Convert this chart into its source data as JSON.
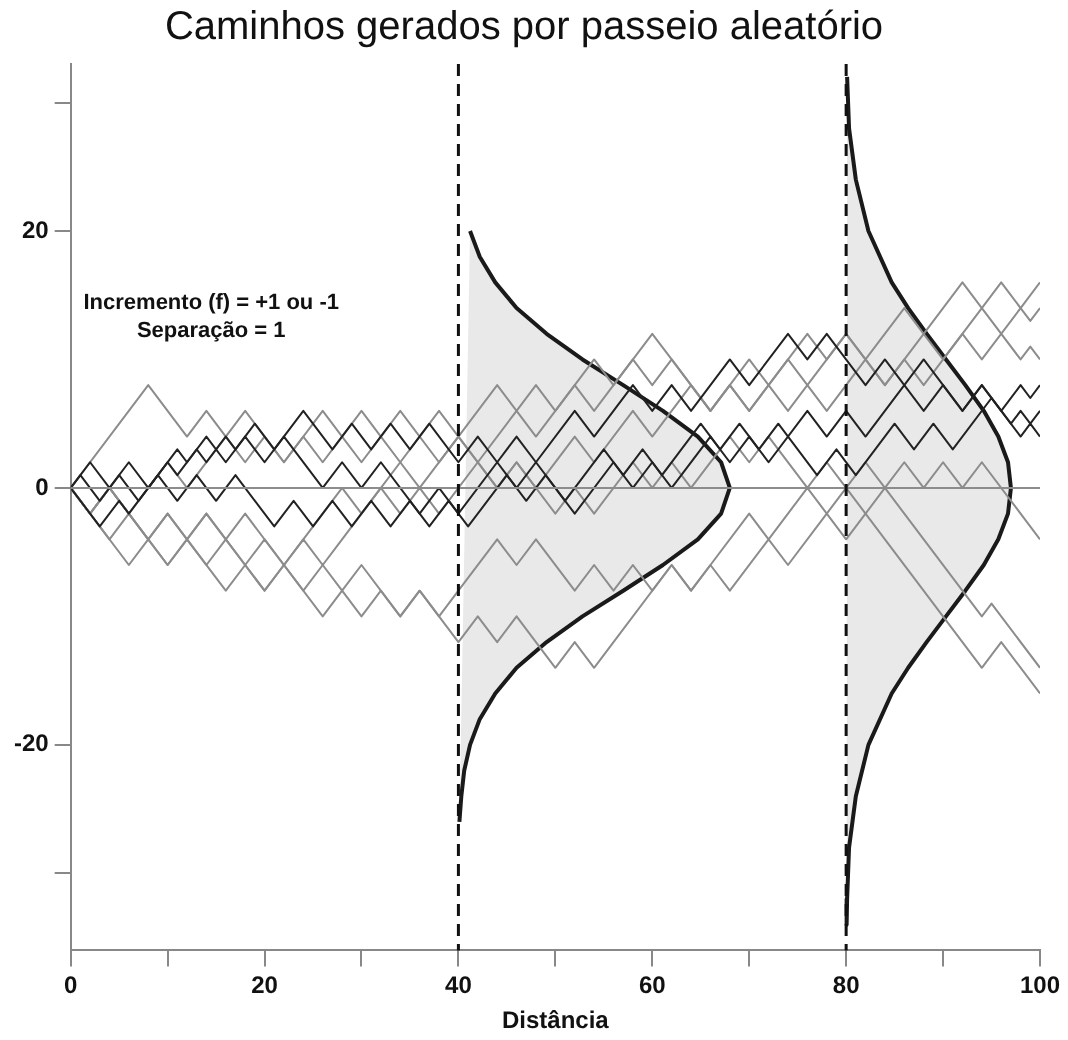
{
  "chart_data": {
    "type": "line",
    "title": "Caminhos gerados por passeio aleatório",
    "xlabel": "Distância",
    "annotations": [
      "Incremento (f) = +1 ou -1",
      "Separação = 1"
    ],
    "xlim": [
      0,
      100
    ],
    "ylim": [
      -36,
      33
    ],
    "xticks": [
      0,
      {
        "value": 10,
        "label": null
      },
      20,
      {
        "value": 30,
        "label": null
      },
      40,
      {
        "value": 50,
        "label": null
      },
      60,
      {
        "value": 70,
        "label": null
      },
      80,
      {
        "value": 90,
        "label": null
      },
      100
    ],
    "yticks": [
      {
        "value": -30,
        "label": null
      },
      -20,
      0,
      20,
      {
        "value": 30,
        "label": null
      }
    ],
    "grid": false,
    "legend": false,
    "marker": "none",
    "line_style": "solid",
    "ref_lines": [
      {
        "axis": "y",
        "value": 0,
        "color": "#8c8c8c",
        "line_style": "solid"
      },
      {
        "axis": "x",
        "value": 40,
        "color": "#111111",
        "line_style": "dashed"
      },
      {
        "axis": "x",
        "value": 80,
        "color": "#111111",
        "line_style": "dashed"
      }
    ],
    "series": [
      {
        "type": "area",
        "color": "#1a1a1a",
        "x": [
          41.2,
          42.2,
          43.8,
          46.0,
          49.1,
          52.8,
          57.0,
          61.1,
          64.7,
          67.1,
          68,
          67.1,
          64.7,
          61.1,
          57.0,
          52.8,
          49.1,
          46.0,
          43.8,
          42.2,
          41.2,
          40.6,
          40.3,
          40.1
        ],
        "values": [
          20,
          18,
          16,
          14,
          12,
          10,
          8,
          6,
          4,
          2,
          0,
          -2,
          -4,
          -6,
          -8,
          -10,
          -12,
          -14,
          -16,
          -18,
          -20,
          -22,
          -24,
          -26
        ]
      },
      {
        "type": "area",
        "color": "#1a1a1a",
        "x": [
          80.1,
          80.3,
          81.0,
          82.3,
          84.7,
          86.4,
          88.3,
          90.3,
          92.3,
          94.2,
          95.7,
          96.7,
          97,
          96.7,
          95.7,
          94.2,
          92.3,
          90.3,
          88.3,
          86.4,
          84.7,
          82.3,
          81.0,
          80.3,
          80.1,
          80.05
        ],
        "values": [
          32,
          28,
          24,
          20,
          16,
          14,
          12,
          10,
          8,
          6,
          4,
          2,
          0,
          -2,
          -4,
          -6,
          -8,
          -10,
          -12,
          -14,
          -16,
          -20,
          -24,
          -28,
          -32,
          -34
        ]
      },
      {
        "color": "#8c8c8c",
        "x": [
          0,
          8,
          12,
          14,
          16,
          18,
          22,
          24,
          26,
          28,
          30,
          32,
          34,
          38,
          40,
          44,
          46,
          48,
          50,
          54,
          56,
          60,
          62,
          66,
          68,
          70,
          74,
          76,
          80,
          82,
          86,
          88,
          92,
          94,
          96,
          98,
          100
        ],
        "values": [
          0,
          8,
          4,
          6,
          4,
          6,
          2,
          4,
          2,
          4,
          2,
          4,
          2,
          6,
          4,
          8,
          6,
          8,
          6,
          10,
          8,
          12,
          10,
          6,
          8,
          6,
          10,
          8,
          12,
          10,
          14,
          12,
          16,
          14,
          16,
          14,
          16
        ]
      },
      {
        "color": "#8c8c8c",
        "x": [
          0,
          2,
          4,
          6,
          10,
          12,
          16,
          18,
          20,
          22,
          26,
          28,
          30,
          32,
          34,
          38,
          40,
          44,
          46,
          48,
          52,
          54,
          58,
          60,
          64,
          66,
          70,
          72,
          76,
          78,
          80,
          84,
          86,
          88,
          92,
          94,
          98,
          99,
          100
        ],
        "values": [
          0,
          -2,
          0,
          -2,
          2,
          0,
          4,
          2,
          4,
          2,
          6,
          4,
          6,
          4,
          6,
          2,
          4,
          0,
          2,
          0,
          4,
          2,
          6,
          4,
          8,
          6,
          10,
          8,
          12,
          10,
          12,
          8,
          10,
          8,
          12,
          10,
          14,
          13,
          14
        ]
      },
      {
        "color": "#8c8c8c",
        "x": [
          0,
          4,
          6,
          8,
          10,
          12,
          14,
          18,
          20,
          22,
          24,
          28,
          30,
          34,
          36,
          40,
          42,
          46,
          48,
          52,
          54,
          58,
          60,
          62,
          66,
          68,
          70,
          72,
          74,
          76,
          78,
          82,
          84,
          88,
          90,
          94,
          98,
          99,
          100
        ],
        "values": [
          0,
          -4,
          -2,
          -4,
          -2,
          -4,
          -2,
          -6,
          -4,
          -6,
          -4,
          0,
          -2,
          2,
          0,
          4,
          2,
          6,
          4,
          8,
          6,
          10,
          8,
          10,
          6,
          8,
          6,
          8,
          6,
          8,
          6,
          10,
          8,
          12,
          10,
          14,
          10,
          11,
          10
        ]
      },
      {
        "color": "#8c8c8c",
        "x": [
          0,
          2,
          4,
          8,
          10,
          12,
          14,
          16,
          18,
          22,
          24,
          26,
          28,
          32,
          34,
          36,
          38,
          42,
          44,
          46,
          50,
          52,
          54,
          58,
          60,
          62,
          64,
          68,
          70,
          72,
          76,
          78,
          80,
          82,
          84,
          86,
          88,
          90,
          92,
          94,
          100
        ],
        "values": [
          0,
          -2,
          0,
          -4,
          -2,
          -4,
          -2,
          -4,
          -2,
          -6,
          -4,
          -6,
          -4,
          0,
          -2,
          0,
          -2,
          2,
          0,
          2,
          -2,
          0,
          -2,
          2,
          0,
          2,
          0,
          4,
          2,
          4,
          0,
          2,
          0,
          2,
          0,
          2,
          0,
          2,
          0,
          2,
          -4
        ]
      },
      {
        "color": "#8c8c8c",
        "x": [
          0,
          6,
          8,
          10,
          12,
          16,
          18,
          20,
          22,
          24,
          26,
          28,
          30,
          34,
          36,
          38,
          40,
          44,
          46,
          48,
          52,
          54,
          56,
          58,
          60,
          62,
          64,
          66,
          70,
          72,
          76,
          78,
          80,
          82,
          84,
          86,
          94,
          95,
          100
        ],
        "values": [
          0,
          -6,
          -4,
          -6,
          -4,
          -8,
          -6,
          -8,
          -6,
          -8,
          -6,
          -8,
          -6,
          -10,
          -8,
          -10,
          -8,
          -4,
          -6,
          -4,
          -8,
          -6,
          -8,
          -6,
          -8,
          -6,
          -8,
          -6,
          -2,
          -4,
          0,
          -2,
          0,
          -2,
          0,
          -2,
          -10,
          -9,
          -14
        ]
      },
      {
        "color": "#8c8c8c",
        "x": [
          0,
          2,
          4,
          10,
          12,
          14,
          16,
          20,
          22,
          26,
          28,
          30,
          32,
          34,
          36,
          40,
          42,
          44,
          46,
          50,
          52,
          54,
          56,
          62,
          64,
          66,
          68,
          72,
          74,
          78,
          80,
          82,
          94,
          96,
          100
        ],
        "values": [
          0,
          -2,
          0,
          -6,
          -4,
          -6,
          -4,
          -8,
          -6,
          -10,
          -8,
          -10,
          -8,
          -10,
          -8,
          -12,
          -10,
          -12,
          -10,
          -14,
          -12,
          -14,
          -12,
          -6,
          -8,
          -6,
          -8,
          -4,
          -6,
          -2,
          -4,
          -2,
          -14,
          -12,
          -16
        ]
      },
      {
        "color": "#222222",
        "x": [
          0,
          1,
          3,
          5,
          7,
          9,
          11,
          13,
          15,
          17,
          21,
          23,
          25,
          27,
          29,
          31,
          33,
          35,
          37,
          39,
          41,
          45,
          47,
          49,
          51,
          55,
          57,
          59,
          61,
          65,
          67,
          69,
          71,
          73,
          77,
          79,
          81,
          85,
          87,
          89,
          91,
          95,
          97,
          98,
          99,
          100
        ],
        "values": [
          0,
          1,
          -1,
          1,
          -1,
          1,
          -1,
          1,
          -1,
          1,
          -3,
          -1,
          -3,
          -1,
          -3,
          -1,
          -3,
          -1,
          -3,
          -1,
          -3,
          1,
          -1,
          1,
          -1,
          3,
          1,
          3,
          1,
          5,
          3,
          5,
          3,
          5,
          1,
          3,
          1,
          5,
          3,
          5,
          3,
          7,
          5,
          6,
          5,
          6
        ]
      },
      {
        "color": "#222222",
        "x": [
          0,
          2,
          4,
          6,
          8,
          11,
          12,
          14,
          16,
          18,
          20,
          22,
          26,
          28,
          30,
          32,
          36,
          38,
          40,
          44,
          46,
          48,
          52,
          56,
          58,
          60,
          62,
          66,
          68,
          70,
          72,
          76,
          78,
          80,
          82,
          86,
          88,
          90,
          92,
          94,
          98,
          99,
          100
        ],
        "values": [
          0,
          2,
          0,
          2,
          0,
          3,
          2,
          4,
          2,
          4,
          2,
          4,
          0,
          2,
          0,
          2,
          -2,
          0,
          -2,
          2,
          0,
          2,
          -2,
          2,
          0,
          2,
          0,
          4,
          2,
          4,
          2,
          6,
          4,
          6,
          4,
          8,
          6,
          8,
          6,
          8,
          4,
          5,
          4
        ]
      },
      {
        "color": "#222222",
        "x": [
          0,
          3,
          5,
          6,
          10,
          11,
          13,
          14,
          16,
          17,
          19,
          21,
          24,
          27,
          29,
          31,
          33,
          35,
          37,
          40,
          42,
          44,
          46,
          48,
          52,
          54,
          58,
          60,
          62,
          64,
          68,
          70,
          74,
          76,
          78,
          82,
          84,
          86,
          88,
          92,
          94,
          96,
          98,
          99,
          100
        ],
        "values": [
          0,
          -3,
          -1,
          -2,
          2,
          1,
          3,
          2,
          4,
          3,
          5,
          3,
          6,
          3,
          5,
          3,
          5,
          3,
          5,
          2,
          4,
          2,
          4,
          2,
          6,
          4,
          8,
          6,
          8,
          6,
          10,
          8,
          12,
          10,
          12,
          8,
          10,
          8,
          10,
          6,
          8,
          6,
          8,
          7,
          8
        ]
      }
    ]
  }
}
